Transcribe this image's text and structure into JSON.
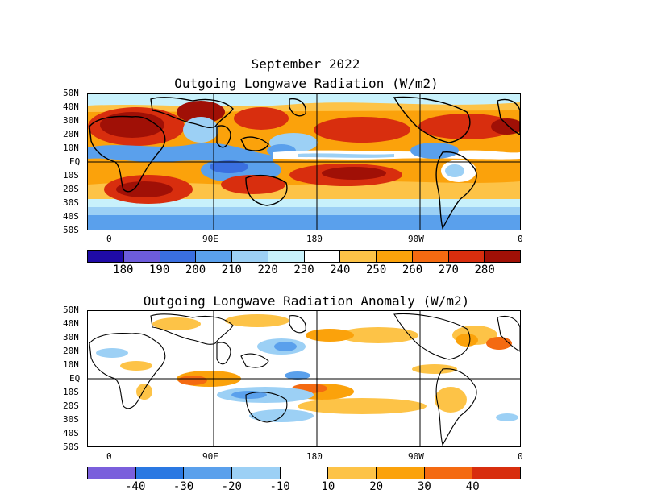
{
  "header": {
    "title": "September 2022"
  },
  "top_map": {
    "title": "Outgoing Longwave Radiation (W/m2)",
    "lat_labels": [
      "50N",
      "40N",
      "30N",
      "20N",
      "10N",
      "EQ",
      "10S",
      "20S",
      "30S",
      "40S",
      "50S"
    ],
    "lon_labels": [
      "0",
      "90E",
      "180",
      "90W",
      "0"
    ],
    "colorbar": {
      "colors": [
        "#1f0ba6",
        "#6d5cdb",
        "#3a6fe0",
        "#5aa0ec",
        "#9cd0f5",
        "#c8f1fb",
        "#ffffff",
        "#fdc347",
        "#fba20b",
        "#f46a11",
        "#d82e0e",
        "#a01006"
      ],
      "labels": [
        "180",
        "190",
        "200",
        "210",
        "220",
        "230",
        "240",
        "250",
        "260",
        "270",
        "280"
      ]
    }
  },
  "bottom_map": {
    "title": "Outgoing Longwave Radiation Anomaly (W/m2)",
    "lat_labels": [
      "50N",
      "40N",
      "30N",
      "20N",
      "10N",
      "EQ",
      "10S",
      "20S",
      "30S",
      "40S",
      "50S"
    ],
    "lon_labels": [
      "0",
      "90E",
      "180",
      "90W",
      "0"
    ],
    "colorbar": {
      "colors": [
        "#7a5fdc",
        "#2a78e2",
        "#5aa0ec",
        "#9cd0f5",
        "#ffffff",
        "#fdc347",
        "#fba20b",
        "#f46a11",
        "#d82e0e"
      ],
      "labels": [
        "-40",
        "-30",
        "-20",
        "-10",
        "10",
        "20",
        "30",
        "40"
      ]
    }
  }
}
